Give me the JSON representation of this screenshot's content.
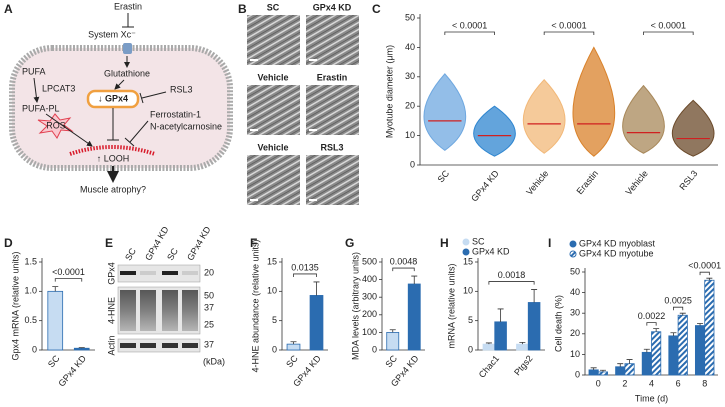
{
  "diagram": {
    "label": "A",
    "erastin": "Erastin",
    "system": "System Xc⁻",
    "glutathione": "Glutathione",
    "rsl3": "RSL3",
    "gpx4": "↓ GPx4",
    "pufa": "PUFA",
    "lpcat3": "LPCAT3",
    "pufa_pl": "PUFA-PL",
    "ros": "ROS",
    "ferrostatin": "Ferrostatin-1",
    "nac": "N-acetylcarnosine",
    "looh": "↑ LOOH",
    "atrophy": "Muscle atrophy?"
  },
  "images": {
    "label": "B",
    "captions": [
      "SC",
      "GPx4 KD",
      "Vehicle",
      "Erastin",
      "Vehicle",
      "RSL3"
    ],
    "colors": [
      "#3f8fd8",
      "#3f8fd8",
      "#e8a040",
      "#d07010",
      "#c4a27a",
      "#8a5a2a"
    ]
  },
  "blot": {
    "label": "E",
    "lanes": [
      "SC",
      "GPx4 KD",
      "SC",
      "GPx4 KD"
    ],
    "rows": [
      "GPx4",
      "4-HNE",
      "Actin"
    ],
    "markers": [
      20,
      50,
      37,
      25,
      37
    ],
    "unit": "(kDa)"
  },
  "chart_data": [
    {
      "label": "C",
      "type": "violin",
      "ylabel": "Myotube diameter (μm)",
      "categories": [
        "SC",
        "GPx4 KD",
        "Vehicle",
        "Erastin",
        "Vehicle",
        "RSL3"
      ],
      "colors": [
        "#6fa8e0",
        "#2f86d0",
        "#f2b878",
        "#d9822b",
        "#a8885a",
        "#6b4a2a"
      ],
      "values": [
        15,
        10,
        14,
        14,
        11,
        9
      ],
      "lows": [
        5,
        3,
        4,
        3,
        4,
        3
      ],
      "highs": [
        31,
        20,
        29,
        40,
        27,
        22
      ],
      "ylim": [
        0,
        50
      ],
      "yticks": [
        0,
        10,
        20,
        30,
        40,
        50
      ],
      "pvalues": [
        "< 0.0001",
        "< 0.0001",
        "< 0.0001"
      ]
    },
    {
      "label": "D",
      "type": "bar",
      "ylabel": "Gpx4 mRNA (relative units)",
      "categories": [
        "SC",
        "GPx4 KD"
      ],
      "values": [
        1.0,
        0.03
      ],
      "errors": [
        0.08,
        0.01
      ],
      "colors": [
        "#c6dcf2",
        "#2b6cb0"
      ],
      "ylim": [
        0,
        1.5
      ],
      "yticks": [
        0,
        0.5,
        {
          "value": 1,
          "label": "1.0"
        },
        1.5
      ],
      "pvalue": "<0.0001"
    },
    {
      "label": "F",
      "type": "bar",
      "ylabel": "4-HNE abundance (relative units)",
      "categories": [
        "SC",
        "GPx4 KD"
      ],
      "values": [
        1,
        9.3
      ],
      "errors": [
        0.4,
        2.3
      ],
      "colors": [
        "#c6dcf2",
        "#2b6cb0"
      ],
      "ylim": [
        0,
        15
      ],
      "yticks": [
        0,
        5,
        10,
        15
      ],
      "pvalue": "0.0135"
    },
    {
      "label": "G",
      "type": "bar",
      "ylabel": "MDA levels (arbitrary units)",
      "categories": [
        "SC",
        "GPx4 KD"
      ],
      "values": [
        100,
        375
      ],
      "errors": [
        15,
        45
      ],
      "colors": [
        "#c6dcf2",
        "#2b6cb0"
      ],
      "ylim": [
        0,
        500
      ],
      "yticks": [
        0,
        100,
        200,
        300,
        400,
        500
      ],
      "pvalue": "0.0048"
    },
    {
      "label": "H",
      "type": "bar",
      "ylabel": "mRNA (relative units)",
      "categories": [
        "Chac1",
        "Ptgs2"
      ],
      "series": [
        {
          "name": "SC",
          "color": "#c6dcf2",
          "values": [
            1,
            1
          ],
          "errors": [
            0.2,
            0.3
          ]
        },
        {
          "name": "GPx4 KD",
          "color": "#2b6cb0",
          "values": [
            4.8,
            8.1
          ],
          "errors": [
            2.2,
            2.2
          ]
        }
      ],
      "ylim": [
        0,
        15
      ],
      "yticks": [
        0,
        5,
        10,
        15
      ],
      "pvalue": "0.0018"
    },
    {
      "label": "I",
      "type": "bar",
      "xlabel": "Time (d)",
      "ylabel": "Cell death (%)",
      "categories": [
        "0",
        "2",
        "4",
        "6",
        "8"
      ],
      "series": [
        {
          "name": "GPx4 KD myoblast",
          "color": "#2b6cb0",
          "values": [
            2.5,
            4,
            11,
            19,
            24
          ],
          "errors": [
            1,
            1.5,
            1.5,
            1.5,
            1
          ]
        },
        {
          "name": "GPx4 KD myotube",
          "color": "#2b6cb0",
          "hatch": true,
          "values": [
            1.5,
            5.5,
            21,
            29,
            46
          ],
          "errors": [
            0.8,
            2,
            1.5,
            1,
            1
          ]
        }
      ],
      "ylim": [
        0,
        50
      ],
      "yticks": [
        0,
        10,
        20,
        30,
        40,
        50
      ],
      "pvalues": [
        null,
        null,
        "0.0022",
        "0.0025",
        "<0.0001"
      ]
    }
  ]
}
